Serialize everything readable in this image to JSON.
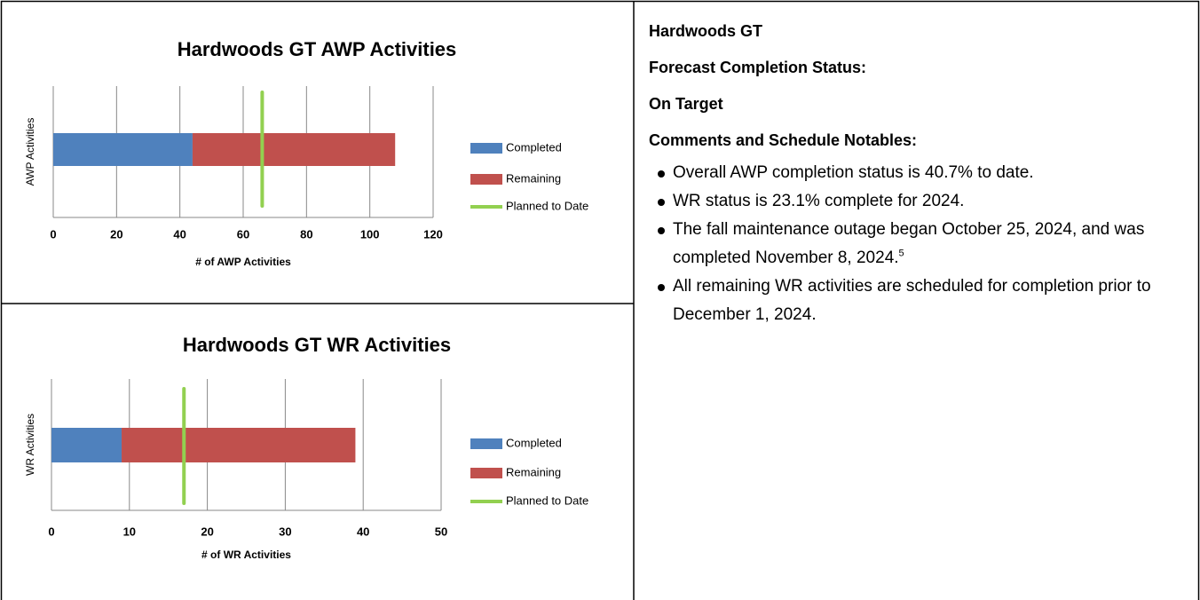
{
  "chart_data": [
    {
      "type": "bar",
      "orientation": "horizontal",
      "stacked": true,
      "title": "Hardwoods GT AWP Activities",
      "xlabel": "# of AWP Activities",
      "ylabel": "AWP Activities",
      "categories": [
        null
      ],
      "series": [
        {
          "name": "Completed",
          "color": "#4f81bd",
          "values": [
            44
          ]
        },
        {
          "name": "Remaining",
          "color": "#c0504d",
          "values": [
            64
          ]
        },
        {
          "name": "Planned to Date",
          "color": "#92d050",
          "kind": "line",
          "values": [
            66
          ]
        }
      ],
      "xlim": [
        0,
        120
      ],
      "xticks": [
        0,
        20,
        40,
        60,
        80,
        100,
        120
      ],
      "grid": true,
      "legend": "right"
    },
    {
      "type": "bar",
      "orientation": "horizontal",
      "stacked": true,
      "title": "Hardwoods GT WR Activities",
      "xlabel": "# of WR Activities",
      "ylabel": "WR Activities",
      "categories": [
        null
      ],
      "series": [
        {
          "name": "Completed",
          "color": "#4f81bd",
          "values": [
            9
          ]
        },
        {
          "name": "Remaining",
          "color": "#c0504d",
          "values": [
            30
          ]
        },
        {
          "name": "Planned to Date",
          "color": "#92d050",
          "kind": "line",
          "values": [
            17
          ]
        }
      ],
      "xlim": [
        0,
        50
      ],
      "xticks": [
        0,
        10,
        20,
        30,
        40,
        50
      ],
      "grid": true,
      "legend": "right"
    }
  ],
  "panel": {
    "heading": "Hardwoods GT",
    "status_label": "Forecast Completion Status:",
    "status": "On Target",
    "comments_label": "Comments and Schedule Notables:",
    "bullets": [
      {
        "text": "Overall AWP completion status is 40.7% to date."
      },
      {
        "text": "WR status is 23.1% complete for 2024."
      },
      {
        "text": "The fall maintenance outage began October 25, 2024, and was completed November 8, 2024.",
        "footnote": "5"
      },
      {
        "text": "All remaining WR activities are scheduled for completion prior to December 1, 2024."
      }
    ]
  }
}
